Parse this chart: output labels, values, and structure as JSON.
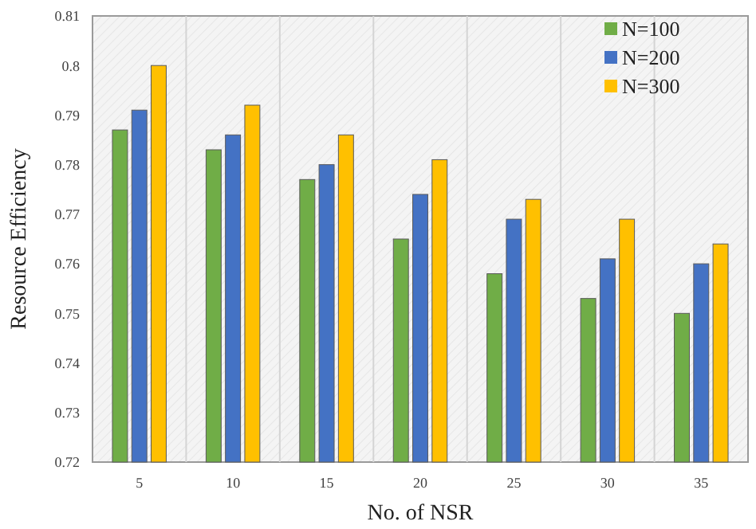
{
  "chart_data": {
    "type": "bar",
    "xlabel": "No. of NSR",
    "ylabel": "Resource Efficiency",
    "categories": [
      "5",
      "10",
      "15",
      "20",
      "25",
      "30",
      "35"
    ],
    "series": [
      {
        "name": "N=100",
        "color": "#70ad47",
        "values": [
          0.787,
          0.783,
          0.777,
          0.765,
          0.758,
          0.753,
          0.75
        ]
      },
      {
        "name": "N=200",
        "color": "#4472c4",
        "values": [
          0.791,
          0.786,
          0.78,
          0.774,
          0.769,
          0.761,
          0.76
        ]
      },
      {
        "name": "N=300",
        "color": "#ffc000",
        "values": [
          0.8,
          0.792,
          0.786,
          0.781,
          0.773,
          0.769,
          0.764
        ]
      }
    ],
    "ylim": [
      0.72,
      0.81
    ],
    "yticks": [
      0.72,
      0.73,
      0.74,
      0.75,
      0.76,
      0.77,
      0.78,
      0.79,
      0.8,
      0.81
    ],
    "grid": "x",
    "legend": "top right"
  }
}
